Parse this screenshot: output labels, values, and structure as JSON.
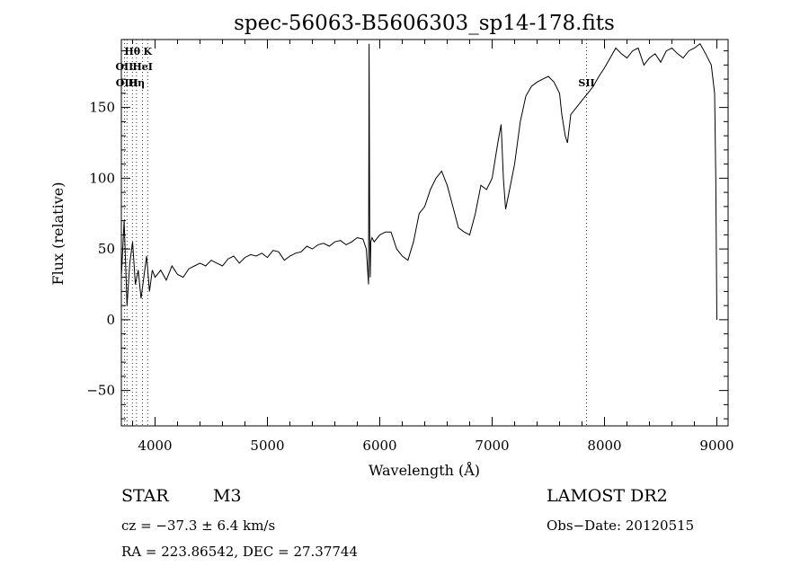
{
  "chart_data": {
    "type": "line",
    "title": "spec-56063-B5606303_sp14-178.fits",
    "xlabel": "Wavelength (Å)",
    "ylabel": "Flux (relative)",
    "xlim": [
      3700,
      9100
    ],
    "ylim": [
      -75,
      198
    ],
    "x_ticks": [
      4000,
      5000,
      6000,
      7000,
      8000,
      9000
    ],
    "y_ticks": [
      -50,
      0,
      50,
      100,
      150
    ],
    "grid": false,
    "line_markers": [
      {
        "label": "Hθ",
        "x": 3798,
        "row": 0
      },
      {
        "label": "K",
        "x": 3934,
        "row": 0
      },
      {
        "label": "OII",
        "x": 3727,
        "row": 1
      },
      {
        "label": "HeI",
        "x": 3889,
        "row": 1
      },
      {
        "label": "OIII",
        "x": 3750,
        "row": 2
      },
      {
        "label": "Hη",
        "x": 3835,
        "row": 2
      },
      {
        "label": "SII",
        "x": 7840,
        "row": 2
      }
    ],
    "series": [
      {
        "x": [
          3700,
          3725,
          3750,
          3775,
          3800,
          3825,
          3850,
          3875,
          3900,
          3925,
          3950,
          3975,
          4000,
          4050,
          4100,
          4150,
          4200,
          4250,
          4300,
          4350,
          4400,
          4450,
          4500,
          4550,
          4600,
          4650,
          4700,
          4750,
          4800,
          4850,
          4900,
          4950,
          5000,
          5050,
          5100,
          5150,
          5200,
          5250,
          5300,
          5350,
          5400,
          5450,
          5500,
          5550,
          5600,
          5650,
          5700,
          5750,
          5800,
          5850,
          5880,
          5900,
          5905,
          5910,
          5915,
          5920,
          5930,
          5950,
          6000,
          6050,
          6100,
          6150,
          6200,
          6250,
          6300,
          6350,
          6400,
          6450,
          6500,
          6550,
          6600,
          6650,
          6700,
          6750,
          6800,
          6850,
          6900,
          6950,
          7000,
          7050,
          7080,
          7100,
          7120,
          7150,
          7200,
          7250,
          7300,
          7350,
          7400,
          7450,
          7500,
          7550,
          7600,
          7620,
          7650,
          7670,
          7700,
          7750,
          7800,
          7850,
          7900,
          7950,
          8000,
          8050,
          8100,
          8150,
          8200,
          8250,
          8300,
          8350,
          8400,
          8450,
          8500,
          8550,
          8600,
          8650,
          8700,
          8750,
          8800,
          8850,
          8900,
          8950,
          8980,
          8990,
          9000
        ],
        "values": [
          30,
          70,
          10,
          40,
          55,
          25,
          35,
          15,
          30,
          45,
          20,
          35,
          30,
          35,
          28,
          38,
          32,
          30,
          36,
          38,
          40,
          38,
          42,
          40,
          38,
          43,
          45,
          40,
          44,
          46,
          45,
          47,
          44,
          49,
          48,
          42,
          45,
          47,
          48,
          52,
          50,
          53,
          54,
          52,
          55,
          56,
          53,
          55,
          58,
          57,
          50,
          25,
          195,
          60,
          30,
          55,
          58,
          55,
          60,
          62,
          62,
          50,
          45,
          42,
          55,
          75,
          80,
          92,
          100,
          105,
          95,
          80,
          65,
          62,
          60,
          75,
          95,
          92,
          100,
          125,
          138,
          100,
          78,
          90,
          110,
          140,
          158,
          165,
          168,
          170,
          172,
          168,
          160,
          145,
          130,
          125,
          145,
          150,
          155,
          160,
          165,
          172,
          178,
          185,
          192,
          188,
          185,
          190,
          192,
          180,
          185,
          188,
          182,
          190,
          192,
          188,
          185,
          190,
          192,
          195,
          188,
          180,
          160,
          100,
          0
        ]
      }
    ]
  },
  "info": {
    "object_type": "STAR",
    "subclass": "M3",
    "survey": "LAMOST DR2",
    "cz": "cz = −37.3 ± 6.4 km/s",
    "obs_date": "Obs−Date: 20120515",
    "coords": "RA = 223.86542, DEC =  27.37744"
  }
}
